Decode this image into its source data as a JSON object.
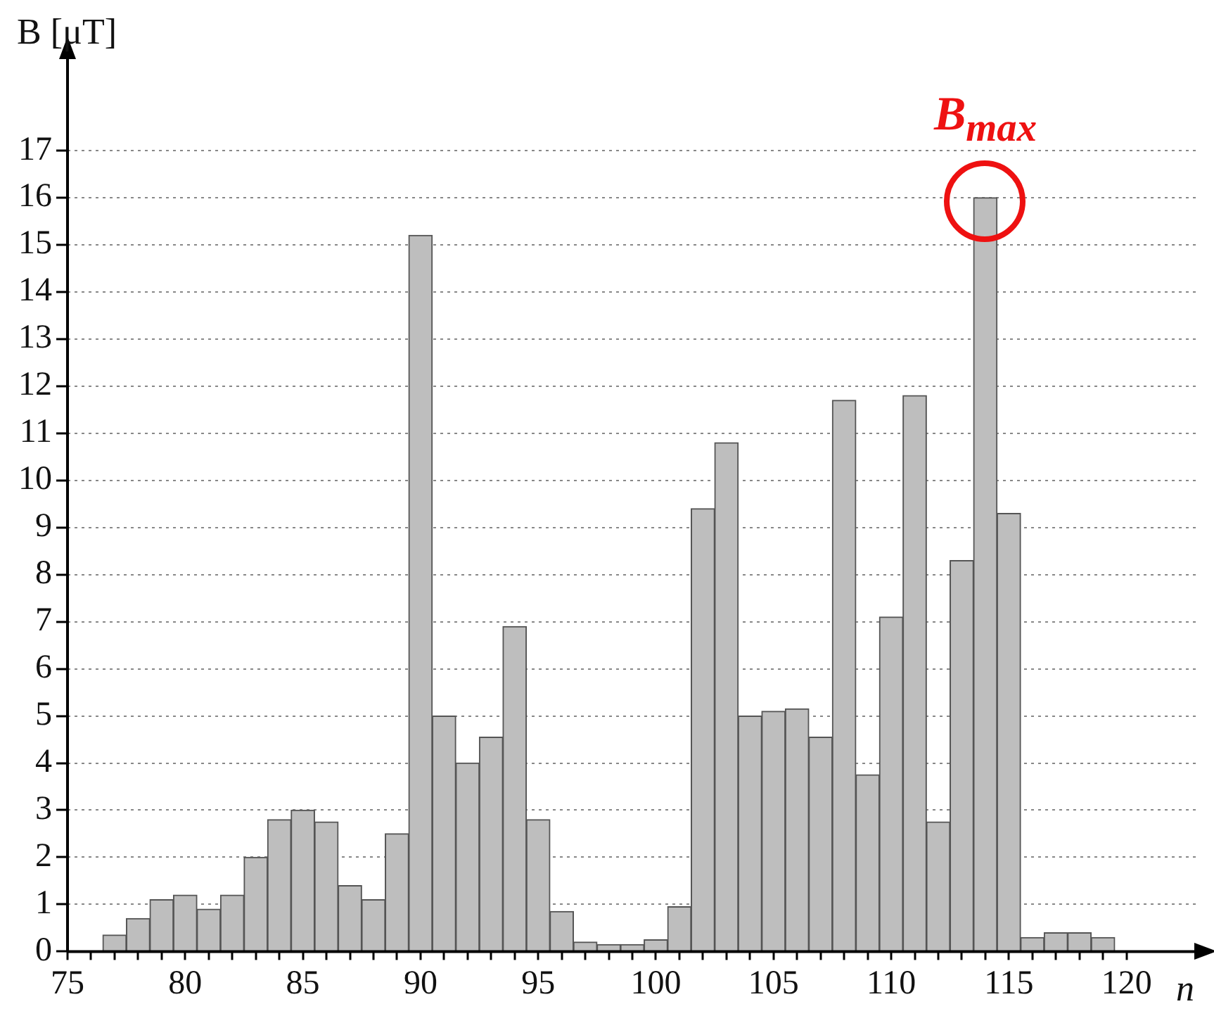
{
  "chart_data": {
    "type": "histogram",
    "xlabel": "n",
    "ylabel": "B [μT]",
    "bins": [
      76.5,
      77.5,
      78.5,
      79.5,
      80.5,
      81.5,
      82.5,
      83.5,
      84.5,
      85.5,
      86.5,
      87.5,
      88.5,
      89.5,
      90.5,
      91.5,
      92.5,
      93.5,
      94.5,
      95.5,
      96.5,
      97.5,
      98.5,
      99.5,
      100.5,
      101.5,
      102.5,
      103.5,
      104.5,
      105.5,
      106.5,
      107.5,
      108.5,
      109.5,
      110.5,
      111.5,
      112.5,
      113.5,
      114.5,
      115.5,
      116.5,
      117.5,
      118.5,
      119.5
    ],
    "values": [
      0.35,
      0.7,
      1.1,
      1.2,
      0.9,
      1.2,
      2.0,
      2.8,
      3.0,
      2.75,
      1.4,
      1.1,
      2.5,
      15.2,
      5.0,
      4.0,
      4.55,
      6.9,
      2.8,
      0.85,
      0.2,
      0.15,
      0.15,
      0.25,
      0.95,
      9.4,
      10.8,
      5.0,
      5.1,
      5.15,
      4.55,
      11.7,
      3.75,
      7.1,
      11.8,
      2.75,
      8.3,
      16.0,
      9.3,
      0.3,
      0.4,
      0.4,
      0.3
    ],
    "color": "#bebebe",
    "xlim": [
      75,
      123
    ],
    "xticks": [
      75,
      {
        "value": 76,
        "label": null
      },
      {
        "value": 77,
        "label": null
      },
      {
        "value": 78,
        "label": null
      },
      {
        "value": 79,
        "label": null
      },
      80,
      {
        "value": 81,
        "label": null
      },
      {
        "value": 82,
        "label": null
      },
      {
        "value": 83,
        "label": null
      },
      {
        "value": 84,
        "label": null
      },
      85,
      {
        "value": 86,
        "label": null
      },
      {
        "value": 87,
        "label": null
      },
      {
        "value": 88,
        "label": null
      },
      {
        "value": 89,
        "label": null
      },
      90,
      {
        "value": 91,
        "label": null
      },
      {
        "value": 92,
        "label": null
      },
      {
        "value": 93,
        "label": null
      },
      {
        "value": 94,
        "label": null
      },
      95,
      {
        "value": 96,
        "label": null
      },
      {
        "value": 97,
        "label": null
      },
      {
        "value": 98,
        "label": null
      },
      {
        "value": 99,
        "label": null
      },
      100,
      {
        "value": 101,
        "label": null
      },
      {
        "value": 102,
        "label": null
      },
      {
        "value": 103,
        "label": null
      },
      {
        "value": 104,
        "label": null
      },
      105,
      {
        "value": 106,
        "label": null
      },
      {
        "value": 107,
        "label": null
      },
      {
        "value": 108,
        "label": null
      },
      {
        "value": 109,
        "label": null
      },
      110,
      {
        "value": 111,
        "label": null
      },
      {
        "value": 112,
        "label": null
      },
      {
        "value": 113,
        "label": null
      },
      {
        "value": 114,
        "label": null
      },
      115,
      {
        "value": 116,
        "label": null
      },
      {
        "value": 117,
        "label": null
      },
      {
        "value": 118,
        "label": null
      },
      {
        "value": 119,
        "label": null
      },
      120
    ],
    "ylim": [
      0,
      19
    ],
    "yticks": [
      0,
      1,
      2,
      3,
      4,
      5,
      6,
      7,
      8,
      9,
      10,
      11,
      12,
      13,
      14,
      15,
      16,
      17
    ],
    "grid": "y",
    "annotations": [
      {
        "text": "B$_{max}$",
        "x": 114,
        "y": 16
      }
    ]
  }
}
